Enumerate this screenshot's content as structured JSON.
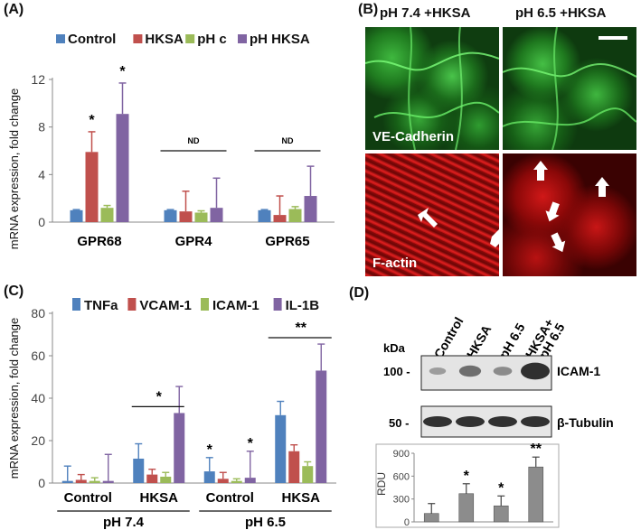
{
  "colors": {
    "control": "#4f81bd",
    "hksa": "#c0504d",
    "phc": "#9bbb59",
    "phhksa": "#8064a2",
    "bar_d": "#8c8c8c"
  },
  "panel_a": {
    "letter": "(A)",
    "ylabel": "mRNA expression, fold change",
    "legend": [
      "Control",
      "HKSA",
      "pH c",
      "pH HKSA"
    ],
    "nd_label": "ND",
    "star": "*",
    "chart_data": {
      "type": "bar",
      "categories": [
        "GPR68",
        "GPR4",
        "GPR65"
      ],
      "ylim": [
        0,
        12
      ],
      "yticks": [
        0,
        4,
        8,
        12
      ],
      "series": [
        {
          "name": "Control",
          "values": [
            1.0,
            1.0,
            1.0
          ],
          "err": [
            0.05,
            0.05,
            0.05
          ]
        },
        {
          "name": "HKSA",
          "values": [
            5.9,
            0.9,
            0.6
          ],
          "err": [
            1.7,
            1.7,
            1.6
          ]
        },
        {
          "name": "pH c",
          "values": [
            1.2,
            0.8,
            1.1
          ],
          "err": [
            0.2,
            0.15,
            0.2
          ]
        },
        {
          "name": "pH HKSA",
          "values": [
            9.1,
            1.2,
            2.2
          ],
          "err": [
            2.6,
            2.5,
            2.5
          ]
        }
      ]
    }
  },
  "panel_b": {
    "letter": "(B)",
    "col1": "pH 7.4 +HKSA",
    "col2": "pH 6.5 +HKSA",
    "label_top": "VE-Cadherin",
    "label_bottom": "F-actin"
  },
  "panel_c": {
    "letter": "(C)",
    "ylabel": "mRNA expression, fold change",
    "legend": [
      "TNFa",
      "VCAM-1",
      "ICAM-1",
      "IL-1B"
    ],
    "group_labels": [
      "pH 7.4",
      "pH 6.5"
    ],
    "star": "*",
    "double_star": "**",
    "chart_data": {
      "type": "bar",
      "categories": [
        "Control",
        "HKSA",
        "Control",
        "HKSA"
      ],
      "ylim": [
        0,
        80
      ],
      "yticks": [
        0,
        20,
        40,
        60,
        80
      ],
      "series": [
        {
          "name": "TNFa",
          "values": [
            1,
            11.5,
            5.5,
            32
          ],
          "err": [
            7,
            7,
            6.5,
            6.5
          ]
        },
        {
          "name": "VCAM-1",
          "values": [
            1.5,
            4,
            2,
            15
          ],
          "err": [
            2.5,
            2.5,
            3,
            3
          ]
        },
        {
          "name": "ICAM-1",
          "values": [
            1,
            3,
            1,
            8
          ],
          "err": [
            1.5,
            2,
            1,
            2
          ]
        },
        {
          "name": "IL-1B",
          "values": [
            1,
            33,
            2.5,
            53
          ],
          "err": [
            12.5,
            12.5,
            12.5,
            12.5
          ]
        }
      ]
    }
  },
  "panel_d": {
    "letter": "(D)",
    "lanes": [
      "Control",
      "HKSA",
      "pH 6.5",
      "HKSA+\npH 6.5"
    ],
    "kda": "kDa",
    "mw1": "100 -",
    "mw2": "50 -",
    "protein1": "ICAM-1",
    "protein2": "β-Tubulin",
    "rdu_label": "RDU",
    "chart_data": {
      "type": "bar",
      "categories": [
        "Control",
        "HKSA",
        "pH 6.5",
        "HKSA+pH 6.5"
      ],
      "values": [
        110,
        370,
        210,
        720
      ],
      "err": [
        130,
        130,
        130,
        130
      ],
      "ylim": [
        0,
        900
      ],
      "yticks": [
        0,
        300,
        600,
        900
      ],
      "sig": [
        "",
        "*",
        "*",
        "**"
      ]
    }
  }
}
